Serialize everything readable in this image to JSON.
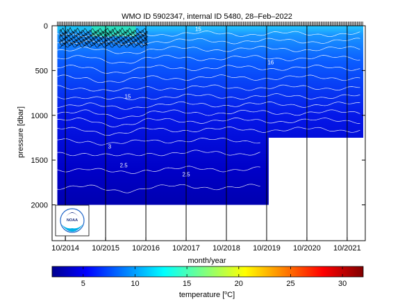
{
  "chart_data": {
    "type": "heatmap",
    "title": "WMO ID 5902347, internal ID 5480, 28–Feb–2022",
    "xlabel": "month/year",
    "ylabel": "pressure [dbar]",
    "x_ticks": [
      "10/2014",
      "10/2015",
      "10/2016",
      "10/2017",
      "10/2018",
      "10/2019",
      "10/2020",
      "10/2021"
    ],
    "y_ticks": [
      0,
      500,
      1000,
      1500,
      2000
    ],
    "ylim": [
      2400,
      0
    ],
    "y_reversed": true,
    "colorbar": {
      "label": "temperature [°C]",
      "label_main": "temperature [",
      "label_unit_sup": "o",
      "label_unit": "C]",
      "range": [
        2,
        32
      ],
      "ticks": [
        5,
        10,
        15,
        20,
        25,
        30
      ]
    },
    "contour_labels": [
      {
        "text": "3",
        "time": 2015.85,
        "pressure": 1370
      },
      {
        "text": "2.5",
        "time": 2016.2,
        "pressure": 1580
      },
      {
        "text": "2.5",
        "time": 2017.75,
        "pressure": 1680
      },
      {
        "text": "16",
        "time": 2019.85,
        "pressure": 430
      },
      {
        "text": "15",
        "time": 2018.05,
        "pressure": 60
      },
      {
        "text": "15",
        "time": 2016.3,
        "pressure": 810
      }
    ],
    "profile_lines": [
      2014.75,
      2015.75,
      2016.75,
      2017.75,
      2018.75,
      2019.75,
      2020.75,
      2021.75
    ],
    "data_extent": {
      "time_start": 2014.55,
      "time_end": 2022.15,
      "max_pressure_before_2019_8": 2000,
      "max_pressure_after_2019_8": 1250
    },
    "logo": {
      "text": "NOAA"
    }
  }
}
